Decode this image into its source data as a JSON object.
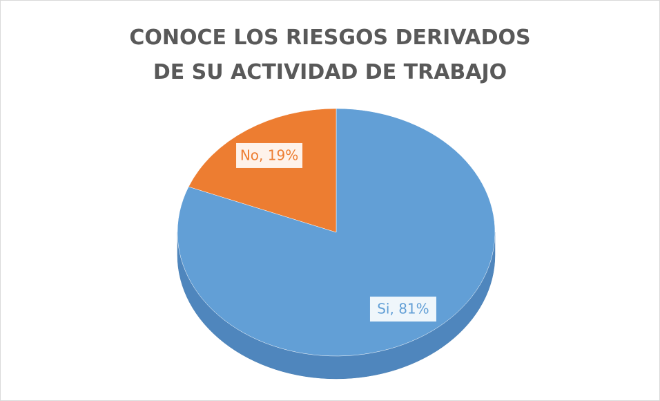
{
  "chart_data": {
    "type": "pie",
    "title": "CONOCE LOS RIESGOS DERIVADOS DE SU ACTIVIDAD DE TRABAJO",
    "categories": [
      "Si",
      "No"
    ],
    "values": [
      81,
      19
    ],
    "value_labels": [
      "Si, 81%",
      "No, 19%"
    ],
    "colors": [
      "#629fd6",
      "#ed7d31"
    ]
  }
}
